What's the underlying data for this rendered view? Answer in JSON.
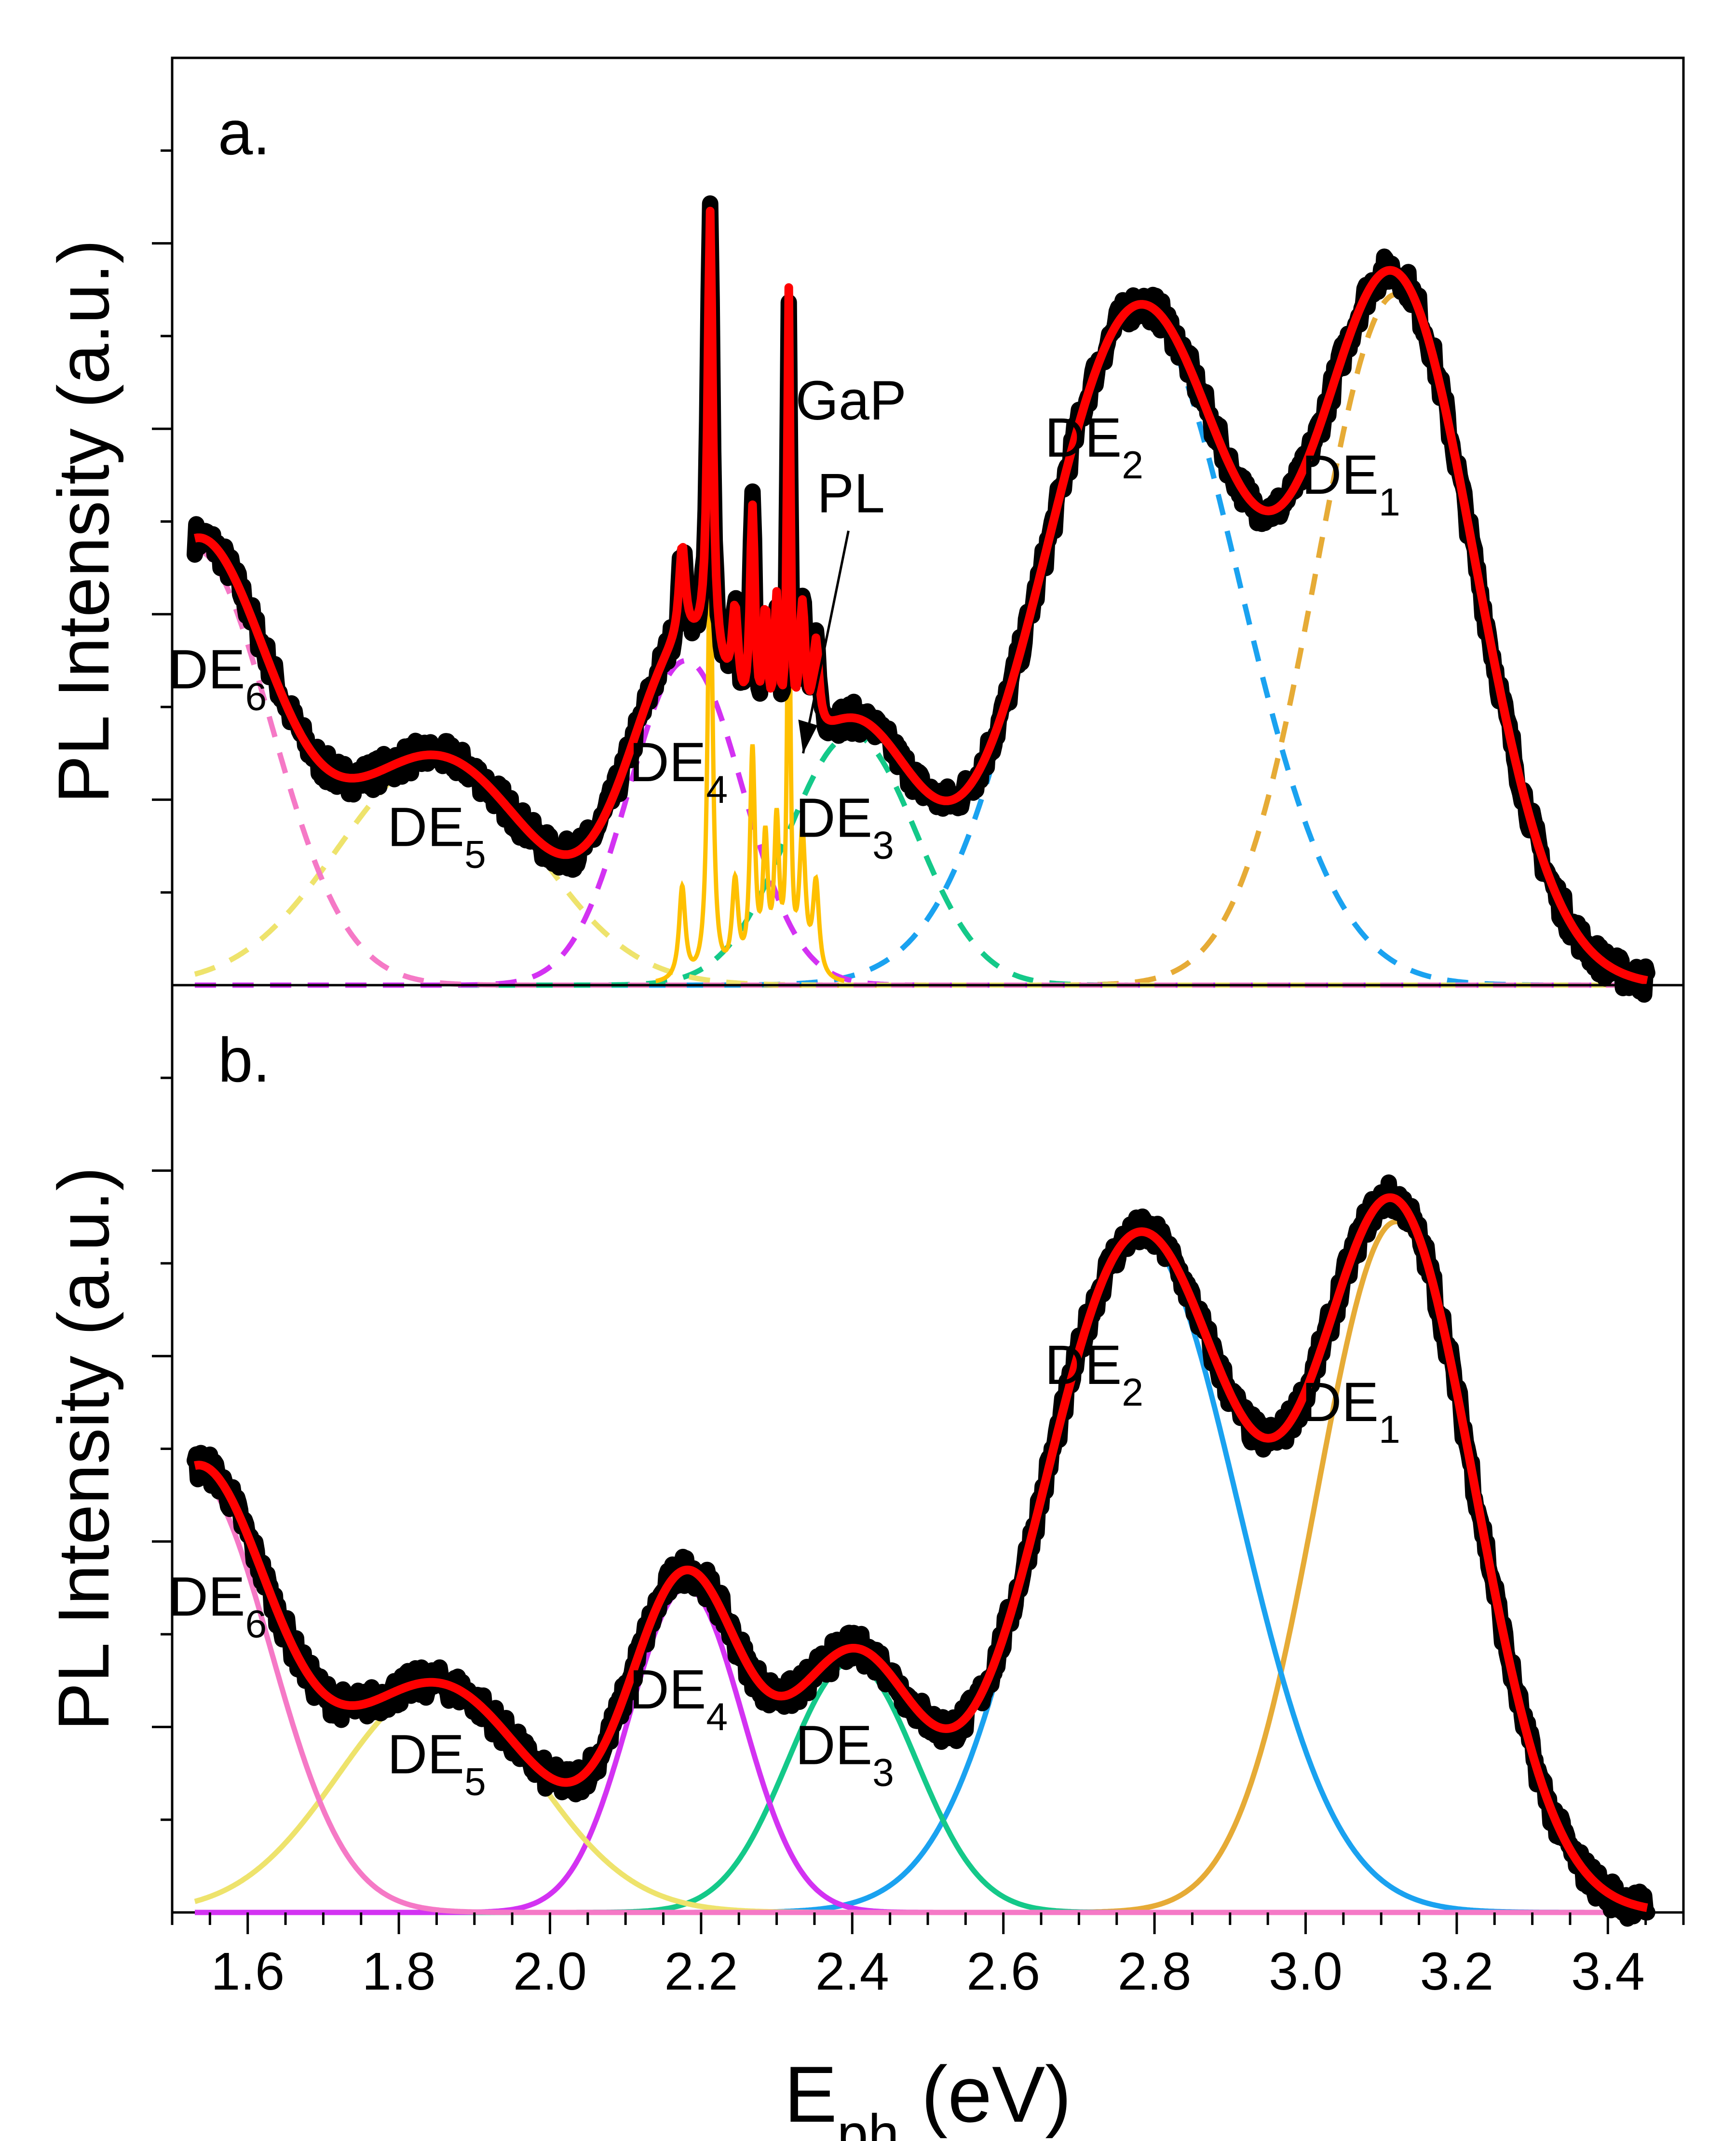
{
  "chart_data": {
    "type": "line",
    "xlabel": "E",
    "xlabel_sub": "ph",
    "xlabel_unit": "(eV)",
    "xlim": [
      1.5,
      3.5
    ],
    "xticks": [
      "1.6",
      "1.8",
      "2.0",
      "2.2",
      "2.4",
      "2.6",
      "2.8",
      "3.0",
      "3.2",
      "3.4"
    ],
    "colors": {
      "DE1": "#e6ab36",
      "DE2": "#1aa2f0",
      "DE3": "#14c989",
      "DE4": "#d332f2",
      "DE5": "#eee36c",
      "DE6": "#f579c6",
      "GaP": "#ffc000",
      "fit": "#ff0000",
      "data": "#000000"
    },
    "panels": [
      {
        "label": "a.",
        "ylabel": "PL Intensity (a.u.)",
        "ylim": [
          0,
          1
        ],
        "component_style": "dashed",
        "components": [
          {
            "name": "DE",
            "sub": "1",
            "key": "DE1",
            "center": 3.12,
            "sigma": 0.105,
            "amp": 0.745
          },
          {
            "name": "DE",
            "sub": "2",
            "key": "DE2",
            "center": 2.78,
            "sigma": 0.13,
            "amp": 0.73
          },
          {
            "name": "DE",
            "sub": "3",
            "key": "DE3",
            "center": 2.4,
            "sigma": 0.085,
            "amp": 0.27
          },
          {
            "name": "DE",
            "sub": "4",
            "key": "DE4",
            "center": 2.18,
            "sigma": 0.075,
            "amp": 0.35
          },
          {
            "name": "DE",
            "sub": "5",
            "key": "DE5",
            "center": 1.85,
            "sigma": 0.13,
            "amp": 0.245
          },
          {
            "name": "DE",
            "sub": "6",
            "key": "DE6",
            "center": 1.53,
            "sigma": 0.1,
            "amp": 0.47
          }
        ],
        "gap_peaks": [
          {
            "center": 2.175,
            "width": 0.005,
            "amp": 0.1
          },
          {
            "center": 2.212,
            "width": 0.004,
            "amp": 0.48
          },
          {
            "center": 2.245,
            "width": 0.005,
            "amp": 0.1
          },
          {
            "center": 2.268,
            "width": 0.004,
            "amp": 0.24
          },
          {
            "center": 2.285,
            "width": 0.004,
            "amp": 0.14
          },
          {
            "center": 2.3,
            "width": 0.004,
            "amp": 0.16
          },
          {
            "center": 2.316,
            "width": 0.0025,
            "amp": 0.49
          },
          {
            "center": 2.334,
            "width": 0.005,
            "amp": 0.15
          },
          {
            "center": 2.352,
            "width": 0.005,
            "amp": 0.1
          }
        ],
        "annotations": [
          {
            "text": "GaP",
            "x": 2.36,
            "y": 0.61
          },
          {
            "text": "PL",
            "x": 2.36,
            "y": 0.51
          }
        ]
      },
      {
        "label": "b.",
        "ylabel": "PL Intensity (a.u.)",
        "ylim": [
          0,
          1
        ],
        "component_style": "solid",
        "components": [
          {
            "name": "DE",
            "sub": "1",
            "key": "DE1",
            "center": 3.12,
            "sigma": 0.105,
            "amp": 0.745
          },
          {
            "name": "DE",
            "sub": "2",
            "key": "DE2",
            "center": 2.78,
            "sigma": 0.13,
            "amp": 0.73
          },
          {
            "name": "DE",
            "sub": "3",
            "key": "DE3",
            "center": 2.4,
            "sigma": 0.085,
            "amp": 0.27
          },
          {
            "name": "DE",
            "sub": "4",
            "key": "DE4",
            "center": 2.18,
            "sigma": 0.075,
            "amp": 0.35
          },
          {
            "name": "DE",
            "sub": "5",
            "key": "DE5",
            "center": 1.85,
            "sigma": 0.13,
            "amp": 0.245
          },
          {
            "name": "DE",
            "sub": "6",
            "key": "DE6",
            "center": 1.53,
            "sigma": 0.1,
            "amp": 0.47
          }
        ]
      }
    ]
  }
}
